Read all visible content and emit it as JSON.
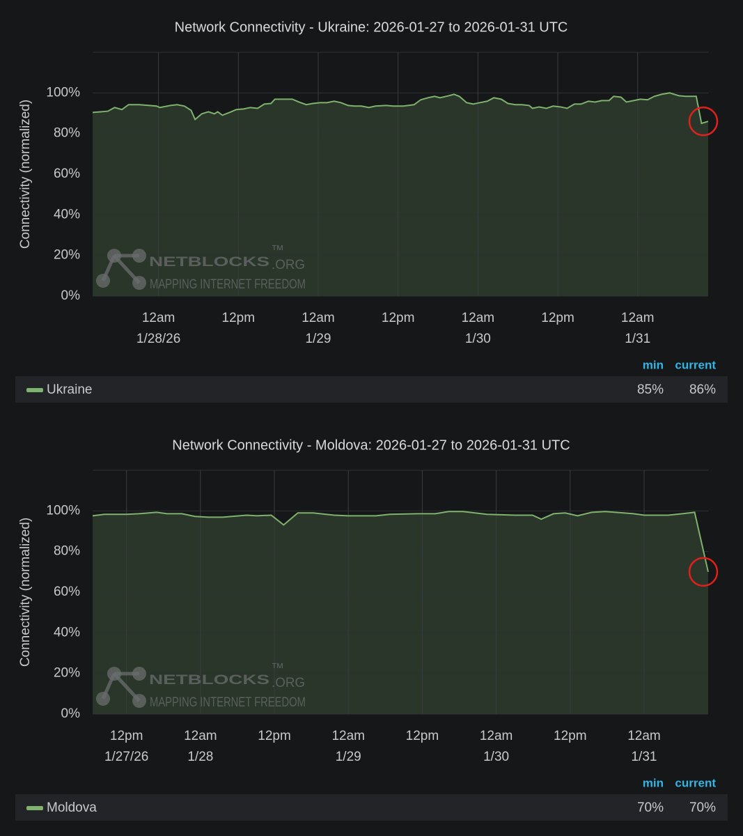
{
  "chart_data": [
    {
      "type": "line",
      "title": "Network Connectivity - Ukraine: 2026-01-27 to 2026-01-31 UTC",
      "ylabel": "Connectivity (normalized)",
      "x": [
        14.1,
        15.3,
        16.4,
        17.4,
        18.5,
        19.5,
        21.1,
        22.6,
        23.7,
        24.2,
        25.8,
        26.8,
        27.9,
        28.9,
        29.5,
        30.5,
        31.5,
        32.4,
        32.9,
        33.6,
        34.7,
        35.7,
        36.8,
        37.8,
        38.9,
        39.9,
        40.9,
        41.5,
        42.5,
        44.1,
        45.1,
        46.2,
        47.2,
        48.3,
        49.3,
        50.4,
        51.4,
        52.5,
        53.5,
        54.5,
        55.6,
        56.6,
        58.2,
        59.3,
        60.8,
        62.4,
        63.4,
        64.5,
        65.5,
        66.3,
        67.6,
        68.4,
        69.2,
        70.3,
        71.3,
        72.3,
        73.4,
        74.4,
        75.5,
        76.5,
        77.6,
        78.6,
        79.7,
        80.2,
        81.2,
        82.3,
        83.3,
        84.4,
        85.4,
        86.5,
        87.5,
        88.6,
        89.6,
        90.6,
        91.7,
        92.4,
        93.5,
        94.3,
        95.4,
        96.4,
        97.5,
        98.5,
        99.6,
        100.8,
        102.2,
        103.2,
        104.8,
        105.6,
        106.6
      ],
      "xlim": [
        14.1,
        106.6
      ],
      "xticks": [
        {
          "value": 24,
          "label": [
            "12am",
            "1/28/26"
          ]
        },
        {
          "value": 36,
          "label": [
            "12pm"
          ]
        },
        {
          "value": 48,
          "label": [
            "12am",
            "1/29"
          ]
        },
        {
          "value": 60,
          "label": [
            "12pm"
          ]
        },
        {
          "value": 72,
          "label": [
            "12am",
            "1/30"
          ]
        },
        {
          "value": 84,
          "label": [
            "12pm"
          ]
        },
        {
          "value": 96,
          "label": [
            "12am",
            "1/31"
          ]
        }
      ],
      "ylim": [
        0,
        120
      ],
      "yticks": [
        {
          "value": 0,
          "label": "0%"
        },
        {
          "value": 20,
          "label": "20%"
        },
        {
          "value": 40,
          "label": "40%"
        },
        {
          "value": 60,
          "label": "60%"
        },
        {
          "value": 80,
          "label": "80%"
        },
        {
          "value": 100,
          "label": "100%"
        }
      ],
      "grid": true,
      "series": [
        {
          "name": "Ukraine",
          "color": "#7eb26d",
          "values": [
            90.4,
            90.7,
            91,
            92.8,
            91.8,
            94.2,
            94.2,
            93.8,
            93.5,
            92.8,
            93.8,
            94.2,
            93.5,
            91.4,
            86.9,
            89.7,
            90.7,
            89.7,
            90.7,
            89,
            90.4,
            91.8,
            92.1,
            92.8,
            92.4,
            94.5,
            94.8,
            96.9,
            96.9,
            96.9,
            95.5,
            94.2,
            94.8,
            95.2,
            95.2,
            95.9,
            95.2,
            93.8,
            93.5,
            93.5,
            92.8,
            93.5,
            93.8,
            93.5,
            93.5,
            94.2,
            96.6,
            97.6,
            98.3,
            97.6,
            98.6,
            99.3,
            98.3,
            95.2,
            94.5,
            95.2,
            95.9,
            97.6,
            96.9,
            94.8,
            94.2,
            94.2,
            93.8,
            92.4,
            93.1,
            92.4,
            93.5,
            93.1,
            92.4,
            94.5,
            94.5,
            95.9,
            95.5,
            96.2,
            96.2,
            98.3,
            97.9,
            95.5,
            96.2,
            96.9,
            96.6,
            98.3,
            99.3,
            100,
            98.6,
            98.3,
            98.3,
            85,
            86
          ],
          "stats": [
            {
              "value": 85,
              "label": "85%"
            },
            {
              "value": 86,
              "label": "86%"
            }
          ]
        }
      ],
      "stat_headers": [
        "min",
        "current"
      ],
      "watermark": {
        "name": "NETBLOCKS",
        "mark": "™",
        "suffix": ".ORG",
        "tagline": "MAPPING INTERNET FREEDOM"
      }
    },
    {
      "type": "line",
      "title": "Network Connectivity - Moldova: 2026-01-27 to 2026-01-31 UTC",
      "ylabel": "Connectivity (normalized)",
      "x": [
        6.5,
        8.4,
        12,
        14,
        16.9,
        18.6,
        21,
        23.1,
        25.3,
        27.6,
        31.5,
        33.2,
        35.5,
        37.5,
        39.8,
        42.3,
        45.7,
        47.9,
        52.5,
        54.7,
        59.2,
        62.1,
        64.3,
        66.6,
        70.5,
        75.1,
        77.9,
        79.3,
        81.3,
        83.2,
        85.2,
        87.5,
        89.7,
        94.3,
        96,
        99.9,
        102.2,
        104.2,
        106.4
      ],
      "xlim": [
        6.5,
        106.4
      ],
      "xticks": [
        {
          "value": 12,
          "label": [
            "12pm",
            "1/27/26"
          ]
        },
        {
          "value": 24,
          "label": [
            "12am",
            "1/28"
          ]
        },
        {
          "value": 36,
          "label": [
            "12pm"
          ]
        },
        {
          "value": 48,
          "label": [
            "12am",
            "1/29"
          ]
        },
        {
          "value": 60,
          "label": [
            "12pm"
          ]
        },
        {
          "value": 72,
          "label": [
            "12am",
            "1/30"
          ]
        },
        {
          "value": 84,
          "label": [
            "12pm"
          ]
        },
        {
          "value": 96,
          "label": [
            "12am",
            "1/31"
          ]
        }
      ],
      "ylim": [
        0,
        120
      ],
      "yticks": [
        {
          "value": 0,
          "label": "0%"
        },
        {
          "value": 20,
          "label": "20%"
        },
        {
          "value": 40,
          "label": "40%"
        },
        {
          "value": 60,
          "label": "60%"
        },
        {
          "value": 80,
          "label": "80%"
        },
        {
          "value": 100,
          "label": "100%"
        }
      ],
      "grid": true,
      "series": [
        {
          "name": "Moldova",
          "color": "#7eb26d",
          "values": [
            97.6,
            98.3,
            98.3,
            98.6,
            99.3,
            98.6,
            98.6,
            97.3,
            96.9,
            96.9,
            97.9,
            97.6,
            97.9,
            93.1,
            99,
            99,
            97.9,
            97.6,
            97.6,
            98.3,
            98.6,
            98.6,
            99.7,
            99.7,
            98.3,
            97.9,
            97.9,
            95.9,
            98.6,
            99,
            97.6,
            99.3,
            99.7,
            98.6,
            97.9,
            97.9,
            98.6,
            99.3,
            70
          ],
          "stats": [
            {
              "value": 70,
              "label": "70%"
            },
            {
              "value": 70,
              "label": "70%"
            }
          ]
        }
      ],
      "stat_headers": [
        "min",
        "current"
      ],
      "watermark": {
        "name": "NETBLOCKS",
        "mark": "™",
        "suffix": ".ORG",
        "tagline": "MAPPING INTERNET FREEDOM"
      }
    }
  ]
}
